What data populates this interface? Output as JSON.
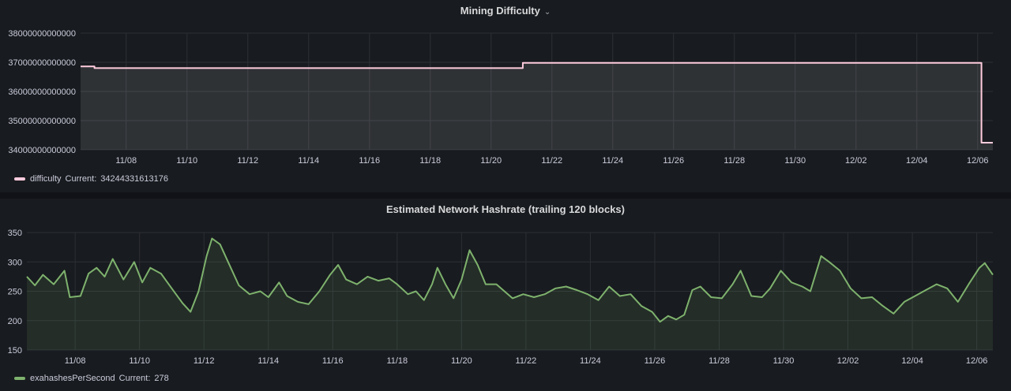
{
  "colors": {
    "panel_bg": "#181b1f",
    "grid": "#2c2f35",
    "difficulty_line": "#ffccdd",
    "hashrate_line": "#7eb26d"
  },
  "dashboard": {
    "difficulty_panel": {
      "title": "Mining Difficulty",
      "menu_icon": "chevron-down-icon",
      "legend": {
        "series": "difficulty",
        "current_label": "Current:",
        "current_value": "34244331613176"
      }
    },
    "hashrate_panel": {
      "title": "Estimated Network Hashrate (trailing 120 blocks)",
      "legend": {
        "series": "exahashesPerSecond",
        "current_label": "Current:",
        "current_value": "278"
      }
    }
  },
  "chart_data": [
    {
      "type": "line",
      "x_range": [
        "2020-11-06T12:00",
        "2020-12-06T12:00"
      ],
      "x_ticks": [
        "11/08",
        "11/10",
        "11/12",
        "11/14",
        "11/16",
        "11/18",
        "11/20",
        "11/22",
        "11/24",
        "11/26",
        "11/28",
        "11/30",
        "12/02",
        "12/04",
        "12/06"
      ],
      "y_ticks": [
        "34000000000000",
        "35000000000000",
        "36000000000000",
        "37000000000000",
        "38000000000000"
      ],
      "ylim": [
        34000000000000,
        38000000000000
      ],
      "grid": true,
      "legend": "bottom-left",
      "fill_under": true,
      "series": [
        {
          "name": "difficulty",
          "points": [
            [
              "2020-11-06T12:00",
              36860000000000
            ],
            [
              "2020-11-06T23:00",
              36860000000000
            ],
            [
              "2020-11-06T23:00",
              36800000000000
            ],
            [
              "2020-11-21T01:00",
              36800000000000
            ],
            [
              "2020-11-21T01:00",
              36980000000000
            ],
            [
              "2020-12-06T03:00",
              36980000000000
            ],
            [
              "2020-12-06T03:00",
              34244331613176
            ],
            [
              "2020-12-06T12:00",
              34244331613176
            ]
          ]
        }
      ]
    },
    {
      "type": "line",
      "x_range": [
        "2020-11-06T12:00",
        "2020-12-06T12:00"
      ],
      "x_ticks": [
        "11/08",
        "11/10",
        "11/12",
        "11/14",
        "11/16",
        "11/18",
        "11/20",
        "11/22",
        "11/24",
        "11/26",
        "11/28",
        "11/30",
        "12/02",
        "12/04",
        "12/06"
      ],
      "y_ticks": [
        "150",
        "200",
        "250",
        "300",
        "350"
      ],
      "ylim": [
        150,
        350
      ],
      "grid": true,
      "legend": "bottom-left",
      "fill_under": true,
      "series": [
        {
          "name": "exahashesPerSecond",
          "points": [
            [
              "2020-11-06T12:00",
              275
            ],
            [
              "2020-11-06T18:00",
              260
            ],
            [
              "2020-11-07T00:00",
              278
            ],
            [
              "2020-11-07T08:00",
              262
            ],
            [
              "2020-11-07T16:00",
              285
            ],
            [
              "2020-11-07T20:00",
              240
            ],
            [
              "2020-11-08T04:00",
              242
            ],
            [
              "2020-11-08T10:00",
              280
            ],
            [
              "2020-11-08T16:00",
              290
            ],
            [
              "2020-11-08T22:00",
              275
            ],
            [
              "2020-11-09T04:00",
              305
            ],
            [
              "2020-11-09T12:00",
              270
            ],
            [
              "2020-11-09T20:00",
              300
            ],
            [
              "2020-11-10T02:00",
              265
            ],
            [
              "2020-11-10T08:00",
              290
            ],
            [
              "2020-11-10T16:00",
              280
            ],
            [
              "2020-11-11T00:00",
              255
            ],
            [
              "2020-11-11T08:00",
              230
            ],
            [
              "2020-11-11T14:00",
              215
            ],
            [
              "2020-11-11T20:00",
              250
            ],
            [
              "2020-11-12T02:00",
              310
            ],
            [
              "2020-11-12T06:00",
              340
            ],
            [
              "2020-11-12T12:00",
              330
            ],
            [
              "2020-11-12T18:00",
              300
            ],
            [
              "2020-11-13T02:00",
              260
            ],
            [
              "2020-11-13T10:00",
              245
            ],
            [
              "2020-11-13T18:00",
              250
            ],
            [
              "2020-11-14T00:00",
              240
            ],
            [
              "2020-11-14T08:00",
              265
            ],
            [
              "2020-11-14T14:00",
              242
            ],
            [
              "2020-11-14T22:00",
              232
            ],
            [
              "2020-11-15T06:00",
              228
            ],
            [
              "2020-11-15T14:00",
              250
            ],
            [
              "2020-11-15T22:00",
              278
            ],
            [
              "2020-11-16T04:00",
              295
            ],
            [
              "2020-11-16T10:00",
              270
            ],
            [
              "2020-11-16T18:00",
              262
            ],
            [
              "2020-11-17T02:00",
              275
            ],
            [
              "2020-11-17T10:00",
              268
            ],
            [
              "2020-11-17T18:00",
              272
            ],
            [
              "2020-11-18T00:00",
              262
            ],
            [
              "2020-11-18T08:00",
              245
            ],
            [
              "2020-11-18T14:00",
              250
            ],
            [
              "2020-11-18T20:00",
              235
            ],
            [
              "2020-11-19T02:00",
              262
            ],
            [
              "2020-11-19T06:00",
              290
            ],
            [
              "2020-11-19T12:00",
              262
            ],
            [
              "2020-11-19T18:00",
              238
            ],
            [
              "2020-11-20T00:00",
              270
            ],
            [
              "2020-11-20T06:00",
              320
            ],
            [
              "2020-11-20T12:00",
              295
            ],
            [
              "2020-11-20T18:00",
              262
            ],
            [
              "2020-11-21T02:00",
              262
            ],
            [
              "2020-11-21T08:00",
              250
            ],
            [
              "2020-11-21T14:00",
              238
            ],
            [
              "2020-11-21T22:00",
              245
            ],
            [
              "2020-11-22T06:00",
              240
            ],
            [
              "2020-11-22T14:00",
              245
            ],
            [
              "2020-11-22T22:00",
              255
            ],
            [
              "2020-11-23T06:00",
              258
            ],
            [
              "2020-11-23T14:00",
              252
            ],
            [
              "2020-11-23T22:00",
              245
            ],
            [
              "2020-11-24T06:00",
              235
            ],
            [
              "2020-11-24T14:00",
              258
            ],
            [
              "2020-11-24T22:00",
              242
            ],
            [
              "2020-11-25T06:00",
              245
            ],
            [
              "2020-11-25T14:00",
              225
            ],
            [
              "2020-11-25T22:00",
              215
            ],
            [
              "2020-11-26T04:00",
              198
            ],
            [
              "2020-11-26T10:00",
              208
            ],
            [
              "2020-11-26T16:00",
              202
            ],
            [
              "2020-11-26T22:00",
              210
            ],
            [
              "2020-11-27T04:00",
              252
            ],
            [
              "2020-11-27T10:00",
              258
            ],
            [
              "2020-11-27T18:00",
              240
            ],
            [
              "2020-11-28T02:00",
              238
            ],
            [
              "2020-11-28T10:00",
              262
            ],
            [
              "2020-11-28T16:00",
              285
            ],
            [
              "2020-11-29T00:00",
              242
            ],
            [
              "2020-11-29T08:00",
              240
            ],
            [
              "2020-11-29T14:00",
              255
            ],
            [
              "2020-11-29T22:00",
              285
            ],
            [
              "2020-11-30T06:00",
              265
            ],
            [
              "2020-11-30T14:00",
              258
            ],
            [
              "2020-11-30T20:00",
              250
            ],
            [
              "2020-12-01T04:00",
              310
            ],
            [
              "2020-12-01T10:00",
              300
            ],
            [
              "2020-12-01T18:00",
              285
            ],
            [
              "2020-12-02T02:00",
              255
            ],
            [
              "2020-12-02T10:00",
              238
            ],
            [
              "2020-12-02T18:00",
              240
            ],
            [
              "2020-12-03T02:00",
              225
            ],
            [
              "2020-12-03T10:00",
              212
            ],
            [
              "2020-12-03T18:00",
              232
            ],
            [
              "2020-12-04T02:00",
              242
            ],
            [
              "2020-12-04T10:00",
              252
            ],
            [
              "2020-12-04T18:00",
              262
            ],
            [
              "2020-12-05T02:00",
              255
            ],
            [
              "2020-12-05T10:00",
              232
            ],
            [
              "2020-12-05T18:00",
              262
            ],
            [
              "2020-12-06T02:00",
              290
            ],
            [
              "2020-12-06T06:00",
              298
            ],
            [
              "2020-12-06T12:00",
              278
            ]
          ]
        }
      ]
    }
  ]
}
